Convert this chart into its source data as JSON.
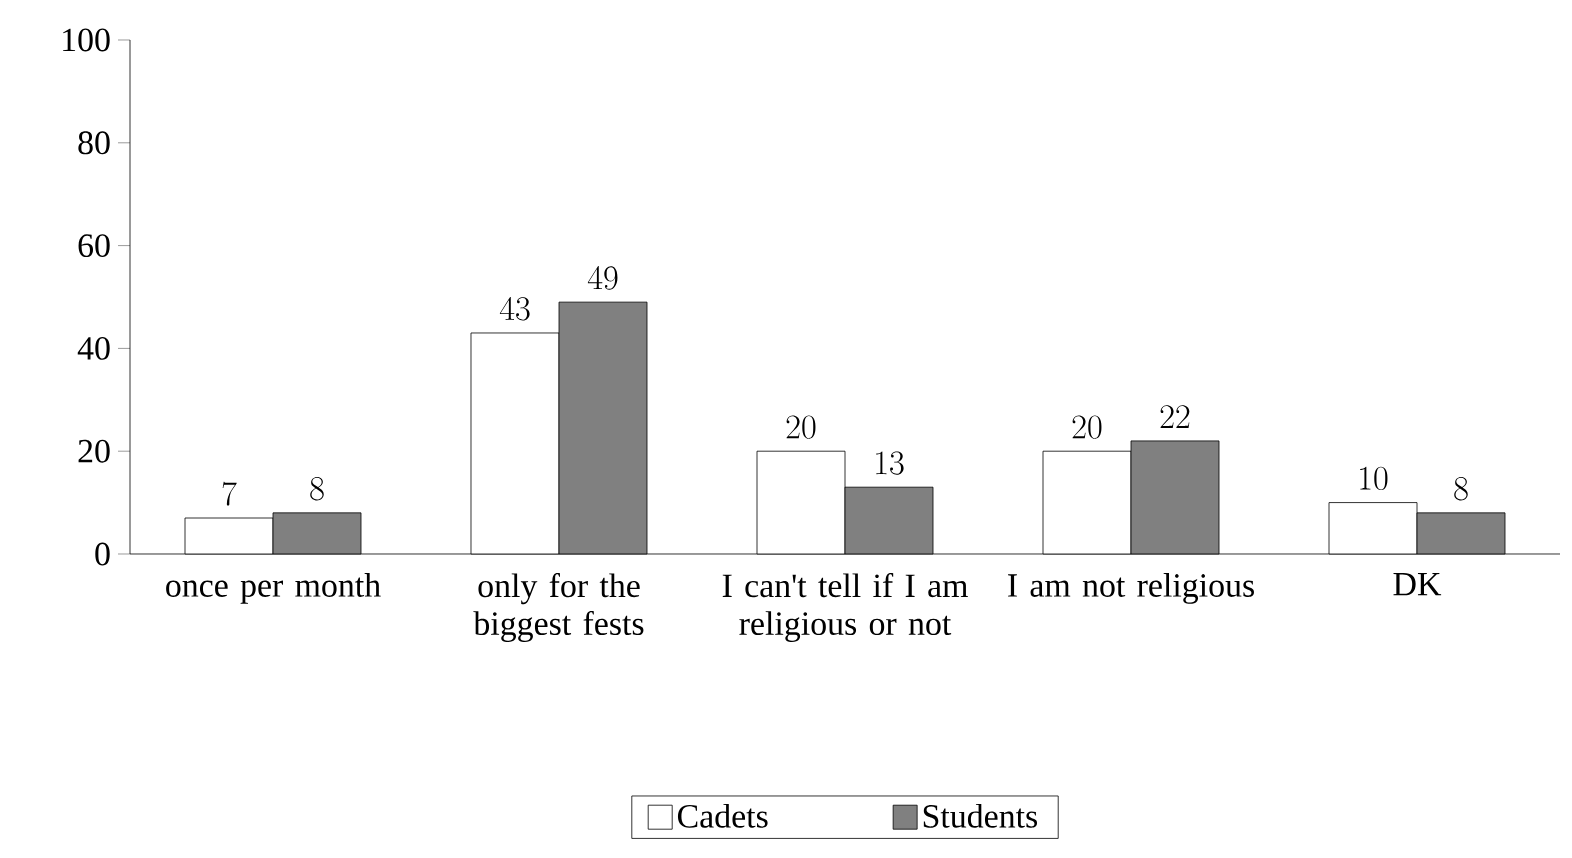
{
  "chart_data": {
    "type": "bar",
    "categories": [
      "once per month",
      "only for the biggest fests",
      "I can't tell if I am religious or not",
      "I am not religious",
      "DK"
    ],
    "series": [
      {
        "name": "Cadets",
        "color": "#ffffff",
        "values": [
          7,
          43,
          20,
          20,
          10
        ]
      },
      {
        "name": "Students",
        "color": "#808080",
        "values": [
          8,
          49,
          13,
          22,
          8
        ]
      }
    ],
    "ylim": [
      0,
      100
    ],
    "yticks": [
      0,
      20,
      40,
      60,
      80,
      100
    ],
    "data_labels": true,
    "grid": false,
    "legend": "bottom"
  }
}
